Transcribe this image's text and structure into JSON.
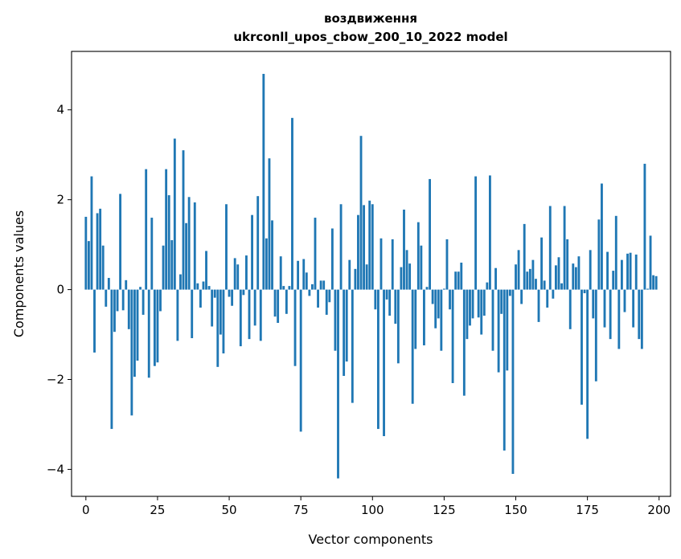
{
  "chart_data": {
    "type": "bar",
    "title": "воздвиження",
    "subtitle": "ukrconll_upos_cbow_200_10_2022 model",
    "xlabel": "Vector components",
    "ylabel": "Components values",
    "xlim": [
      -5,
      204
    ],
    "ylim": [
      -4.6,
      5.3
    ],
    "xticks": [
      0,
      25,
      50,
      75,
      100,
      125,
      150,
      175,
      200
    ],
    "xtick_labels": [
      "0",
      "25",
      "50",
      "75",
      "100",
      "125",
      "150",
      "175",
      "200"
    ],
    "yticks": [
      -4,
      -2,
      0,
      2,
      4
    ],
    "ytick_labels": [
      "−4",
      "−2",
      "0",
      "2",
      "4"
    ],
    "bar_color": "#1f77b4",
    "grid": false,
    "values": [
      1.62,
      1.08,
      2.52,
      -1.4,
      1.7,
      1.8,
      0.98,
      -0.38,
      0.26,
      -3.1,
      -0.94,
      -0.48,
      2.13,
      -0.46,
      0.21,
      -0.88,
      -2.8,
      -1.94,
      -1.58,
      0.06,
      -0.56,
      2.68,
      -1.96,
      1.6,
      -1.7,
      -1.62,
      -0.48,
      0.98,
      2.68,
      2.1,
      1.1,
      3.36,
      -1.14,
      0.34,
      3.1,
      1.48,
      2.06,
      -1.08,
      1.94,
      0.14,
      -0.4,
      0.18,
      0.86,
      0.08,
      -0.82,
      -0.18,
      -1.72,
      -1.0,
      -1.42,
      1.9,
      -0.16,
      -0.36,
      0.7,
      0.56,
      -1.26,
      -0.12,
      0.76,
      -1.1,
      1.66,
      -0.8,
      2.08,
      -1.14,
      4.8,
      1.14,
      2.92,
      1.54,
      -0.6,
      -0.74,
      0.74,
      0.08,
      -0.54,
      0.08,
      3.82,
      -1.7,
      0.64,
      -3.16,
      0.68,
      0.38,
      -0.14,
      0.12,
      1.6,
      -0.4,
      0.2,
      0.2,
      -0.56,
      -0.28,
      1.36,
      -1.36,
      -4.2,
      1.9,
      -1.92,
      -1.6,
      0.66,
      -2.52,
      0.46,
      1.66,
      3.42,
      1.88,
      0.56,
      1.98,
      1.9,
      -0.44,
      -3.1,
      1.14,
      -3.26,
      -0.22,
      -0.58,
      1.12,
      -0.76,
      -1.64,
      0.5,
      1.78,
      0.88,
      0.58,
      -2.54,
      -1.32,
      1.5,
      0.98,
      -1.24,
      0.06,
      2.46,
      -0.32,
      -0.86,
      -0.64,
      -1.36,
      0.02,
      1.12,
      -0.44,
      -2.08,
      0.4,
      0.4,
      0.6,
      -2.36,
      -1.1,
      -0.8,
      -0.64,
      2.52,
      -0.62,
      -1.0,
      -0.58,
      0.16,
      2.54,
      -1.36,
      0.48,
      -1.84,
      -0.54,
      -3.58,
      -1.8,
      -0.14,
      -4.1,
      0.56,
      0.88,
      -0.32,
      1.46,
      0.4,
      0.46,
      0.66,
      0.24,
      -0.72,
      1.16,
      0.2,
      -0.4,
      1.86,
      -0.2,
      0.54,
      0.72,
      0.14,
      1.86,
      1.12,
      -0.88,
      0.58,
      0.5,
      0.74,
      -2.56,
      -0.08,
      -3.32,
      0.88,
      -0.64,
      -2.04,
      1.56,
      2.36,
      -0.84,
      0.84,
      -1.1,
      0.42,
      1.64,
      -1.32,
      0.66,
      -0.5,
      0.8,
      0.82,
      -0.84,
      0.78,
      -1.1,
      -1.32,
      2.8,
      0.02,
      1.2,
      0.32,
      0.3
    ]
  }
}
